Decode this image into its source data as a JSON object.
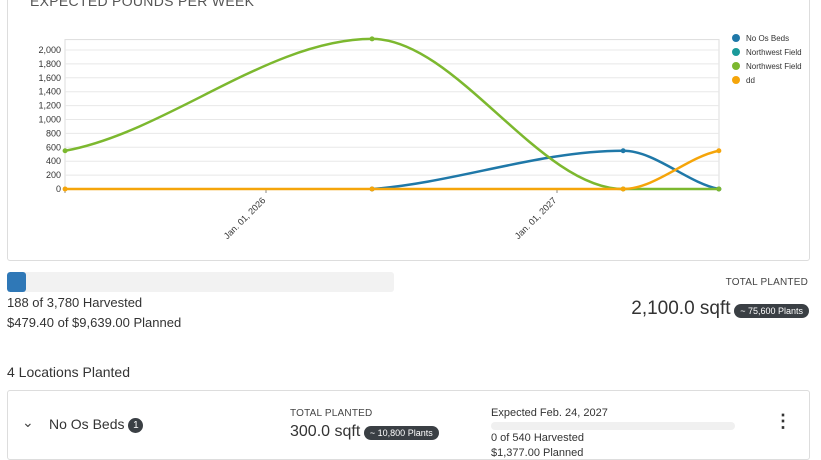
{
  "chart_data": {
    "type": "line",
    "title": "EXPECTED POUNDS PER WEEK",
    "x": [
      "2025-04-24",
      "2026-05-14",
      "2027-03-25",
      "2027-07-23"
    ],
    "x_tick_labels": [
      "Jan. 01, 2026",
      "Jan. 01, 2027"
    ],
    "y_tick_labels": [
      "0",
      "200",
      "400",
      "600",
      "800",
      "1,000",
      "1,200",
      "1,400",
      "1,600",
      "1,800",
      "2,000"
    ],
    "ylim": [
      0,
      2150
    ],
    "grid": true,
    "legend_position": "right",
    "series": [
      {
        "name": "No Os Beds",
        "color": "#1f78a8",
        "values": [
          null,
          0,
          550,
          0
        ]
      },
      {
        "name": "Northwest Field",
        "color": "#1a9a9a",
        "values": [
          null,
          null,
          null,
          null
        ]
      },
      {
        "name": "Northwest Field",
        "color": "#7cb82f",
        "values": [
          550,
          2160,
          0,
          0
        ]
      },
      {
        "name": "dd",
        "color": "#f5a50a",
        "values": [
          0,
          0,
          0,
          550
        ]
      }
    ]
  },
  "summary": {
    "progress_percent": 5,
    "harvested": "188 of 3,780 Harvested",
    "planned": "$479.40 of $9,639.00 Planned",
    "total_label": "TOTAL PLANTED",
    "total_value": "2,100.0 sqft",
    "plants_badge": "~ 75,600 Plants"
  },
  "locations": {
    "heading": "4 Locations Planted",
    "items": [
      {
        "name": "No Os Beds",
        "count": "1",
        "total_label": "TOTAL PLANTED",
        "total_value": "300.0 sqft",
        "plants_badge": "~ 10,800 Plants",
        "expected": "Expected Feb. 24, 2027",
        "progress_percent": 0,
        "harvested": "0 of 540 Harvested",
        "planned": "$1,377.00 Planned"
      }
    ]
  }
}
